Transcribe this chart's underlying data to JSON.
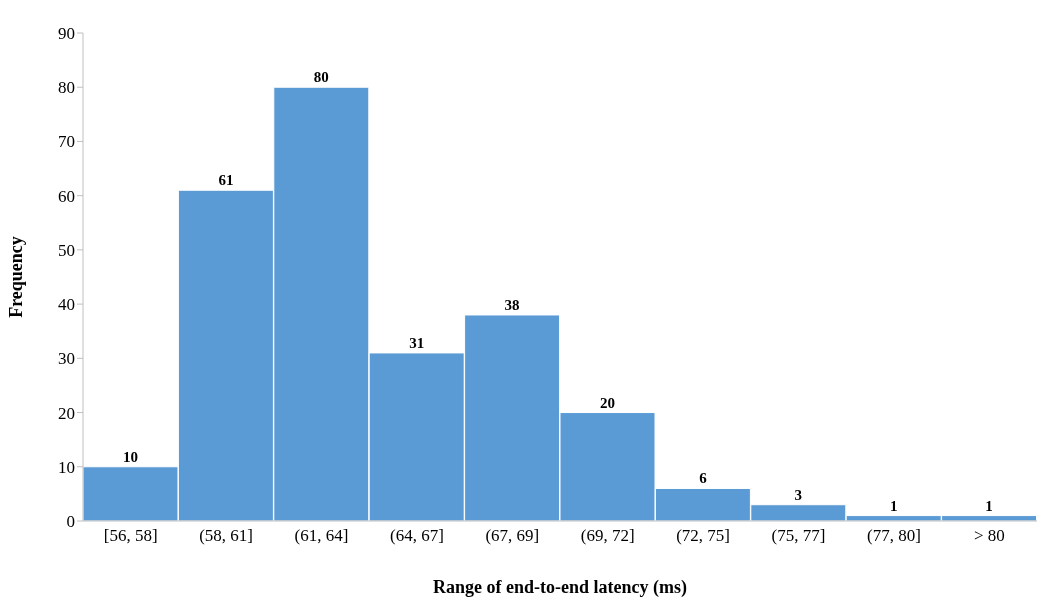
{
  "chart_data": {
    "type": "bar",
    "xlabel": "Range of end-to-end latency (ms)",
    "ylabel": "Frequency",
    "categories": [
      "[56, 58]",
      "(58, 61]",
      "(61, 64]",
      "(64, 67]",
      "(67, 69]",
      "(69, 72]",
      "(72, 75]",
      "(75, 77]",
      "(77, 80]",
      "> 80"
    ],
    "values": [
      10,
      61,
      80,
      31,
      38,
      20,
      6,
      3,
      1,
      1
    ],
    "color": "#5b9bd5",
    "ylim": [
      0,
      90
    ],
    "yticks": [
      0,
      10,
      20,
      30,
      40,
      50,
      60,
      70,
      80,
      90
    ],
    "grid": false,
    "data_labels": true
  }
}
